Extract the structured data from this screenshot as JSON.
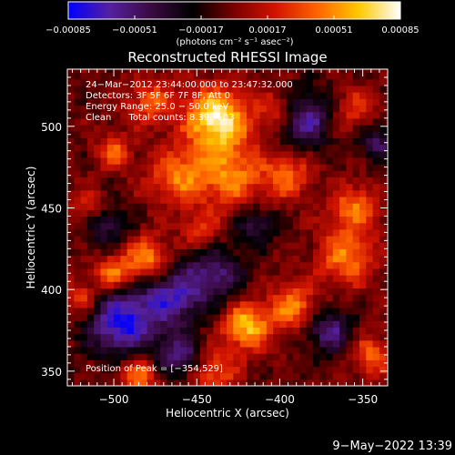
{
  "chart_data": {
    "type": "heatmap",
    "title": "Reconstructed RHESSI Image",
    "xlabel": "Heliocentric X (arcsec)",
    "ylabel": "Heliocentric Y (arcsec)",
    "xlim": [
      -528,
      -335
    ],
    "ylim": [
      341,
      535
    ],
    "x_ticks": [
      {
        "value": -500,
        "label": "−500"
      },
      {
        "value": -450,
        "label": "−450"
      },
      {
        "value": -400,
        "label": "−400"
      },
      {
        "value": -350,
        "label": "−350"
      }
    ],
    "y_ticks": [
      {
        "value": 350,
        "label": "350"
      },
      {
        "value": 400,
        "label": "400"
      },
      {
        "value": 450,
        "label": "450"
      },
      {
        "value": 500,
        "label": "500"
      }
    ],
    "colorbar": {
      "min": -0.00085,
      "max": 0.00085,
      "ticks": [
        {
          "value": -0.00085,
          "label": "−0.00085"
        },
        {
          "value": -0.00051,
          "label": "−0.00051"
        },
        {
          "value": -0.00017,
          "label": "−0.00017"
        },
        {
          "value": 0.00017,
          "label": "0.00017"
        },
        {
          "value": 0.00051,
          "label": "0.00051"
        },
        {
          "value": 0.00085,
          "label": "0.00085"
        }
      ],
      "units": "(photons cm⁻² s⁻¹ asec⁻²)",
      "colormap": [
        "#0000ff",
        "#5520a0",
        "#3a0a40",
        "#000000",
        "#7a0000",
        "#d21400",
        "#ff6400",
        "#ffc800",
        "#ffffff"
      ]
    },
    "annotations": [
      "24−Mar−2012 23:44:00.000 to 23:47:32.000",
      "Detectors: 3F 5F 6F 7F 8F, Att 0",
      "Energy Range: 25.0 − 50.0 keV",
      "Clean      Total counts: 8.39E+03"
    ],
    "peak_label": "Position of Peak = [−354,529]",
    "peak": {
      "x": -354,
      "y": 529
    },
    "grid": false,
    "sources": [
      {
        "x": -438,
        "y": 505,
        "amp": 1.0,
        "r": 13
      },
      {
        "x": -430,
        "y": 470,
        "amp": 0.6,
        "r": 15
      },
      {
        "x": -462,
        "y": 470,
        "amp": 0.55,
        "r": 12
      },
      {
        "x": -500,
        "y": 485,
        "amp": 0.5,
        "r": 7
      },
      {
        "x": -478,
        "y": 515,
        "amp": 0.45,
        "r": 10
      },
      {
        "x": -500,
        "y": 410,
        "amp": 0.6,
        "r": 8
      },
      {
        "x": -480,
        "y": 420,
        "amp": 0.65,
        "r": 9
      },
      {
        "x": -420,
        "y": 378,
        "amp": 0.8,
        "r": 10
      },
      {
        "x": -392,
        "y": 390,
        "amp": 0.6,
        "r": 10
      },
      {
        "x": -360,
        "y": 420,
        "amp": 0.6,
        "r": 12
      },
      {
        "x": -355,
        "y": 450,
        "amp": 0.55,
        "r": 10
      },
      {
        "x": -395,
        "y": 470,
        "amp": 0.5,
        "r": 10
      },
      {
        "x": -400,
        "y": 510,
        "amp": 0.45,
        "r": 9
      },
      {
        "x": -355,
        "y": 510,
        "amp": 0.4,
        "r": 9
      },
      {
        "x": -485,
        "y": 348,
        "amp": 0.6,
        "r": 8
      },
      {
        "x": -440,
        "y": 350,
        "amp": 0.5,
        "r": 10
      },
      {
        "x": -345,
        "y": 360,
        "amp": 0.5,
        "r": 9
      },
      {
        "x": -520,
        "y": 395,
        "amp": 0.45,
        "r": 7
      },
      {
        "x": -515,
        "y": 450,
        "amp": 0.35,
        "r": 8
      },
      {
        "x": -448,
        "y": 435,
        "amp": 0.4,
        "r": 8
      }
    ],
    "negative_regions": [
      {
        "x": -495,
        "y": 380,
        "amp": 0.9,
        "r": 14
      },
      {
        "x": -465,
        "y": 395,
        "amp": 0.7,
        "r": 12
      },
      {
        "x": -440,
        "y": 410,
        "amp": 0.6,
        "r": 12
      },
      {
        "x": -385,
        "y": 505,
        "amp": 0.7,
        "r": 12
      },
      {
        "x": -370,
        "y": 375,
        "amp": 0.6,
        "r": 10
      },
      {
        "x": -460,
        "y": 360,
        "amp": 0.6,
        "r": 10
      },
      {
        "x": -505,
        "y": 440,
        "amp": 0.45,
        "r": 9
      },
      {
        "x": -415,
        "y": 440,
        "amp": 0.45,
        "r": 9
      },
      {
        "x": -340,
        "y": 490,
        "amp": 0.5,
        "r": 8
      }
    ]
  },
  "footer": {
    "date": "9−May−2022 13:39"
  }
}
